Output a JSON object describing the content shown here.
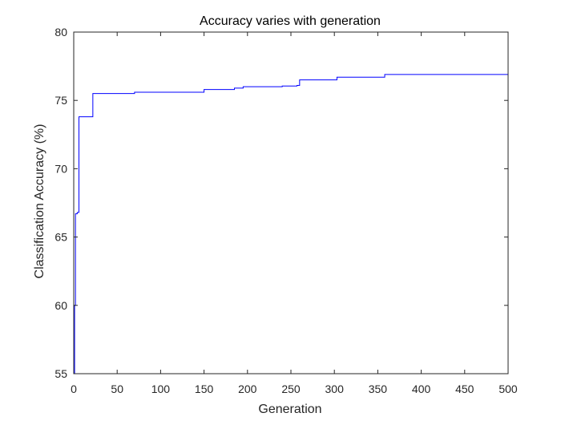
{
  "chart_data": {
    "type": "line",
    "title": "Accuracy varies with generation",
    "xlabel": "Generation",
    "ylabel": "Classification Accuracy (%)",
    "xlim": [
      0,
      500
    ],
    "ylim": [
      55,
      80
    ],
    "xticks": [
      0,
      50,
      100,
      150,
      200,
      250,
      300,
      350,
      400,
      450,
      500
    ],
    "yticks": [
      55,
      60,
      65,
      70,
      75,
      80
    ],
    "grid": false,
    "legend": "none",
    "series": [
      {
        "color": "#0000ff",
        "step": true,
        "x": [
          0,
          1,
          2,
          4,
          6,
          20,
          22,
          70,
          150,
          185,
          195,
          240,
          257,
          260,
          300,
          303,
          355,
          358,
          500
        ],
        "y": [
          55.0,
          60.0,
          66.7,
          66.8,
          73.8,
          73.8,
          75.5,
          75.6,
          75.8,
          75.9,
          76.0,
          76.05,
          76.1,
          76.5,
          76.5,
          76.7,
          76.7,
          76.9,
          76.9
        ]
      }
    ]
  }
}
